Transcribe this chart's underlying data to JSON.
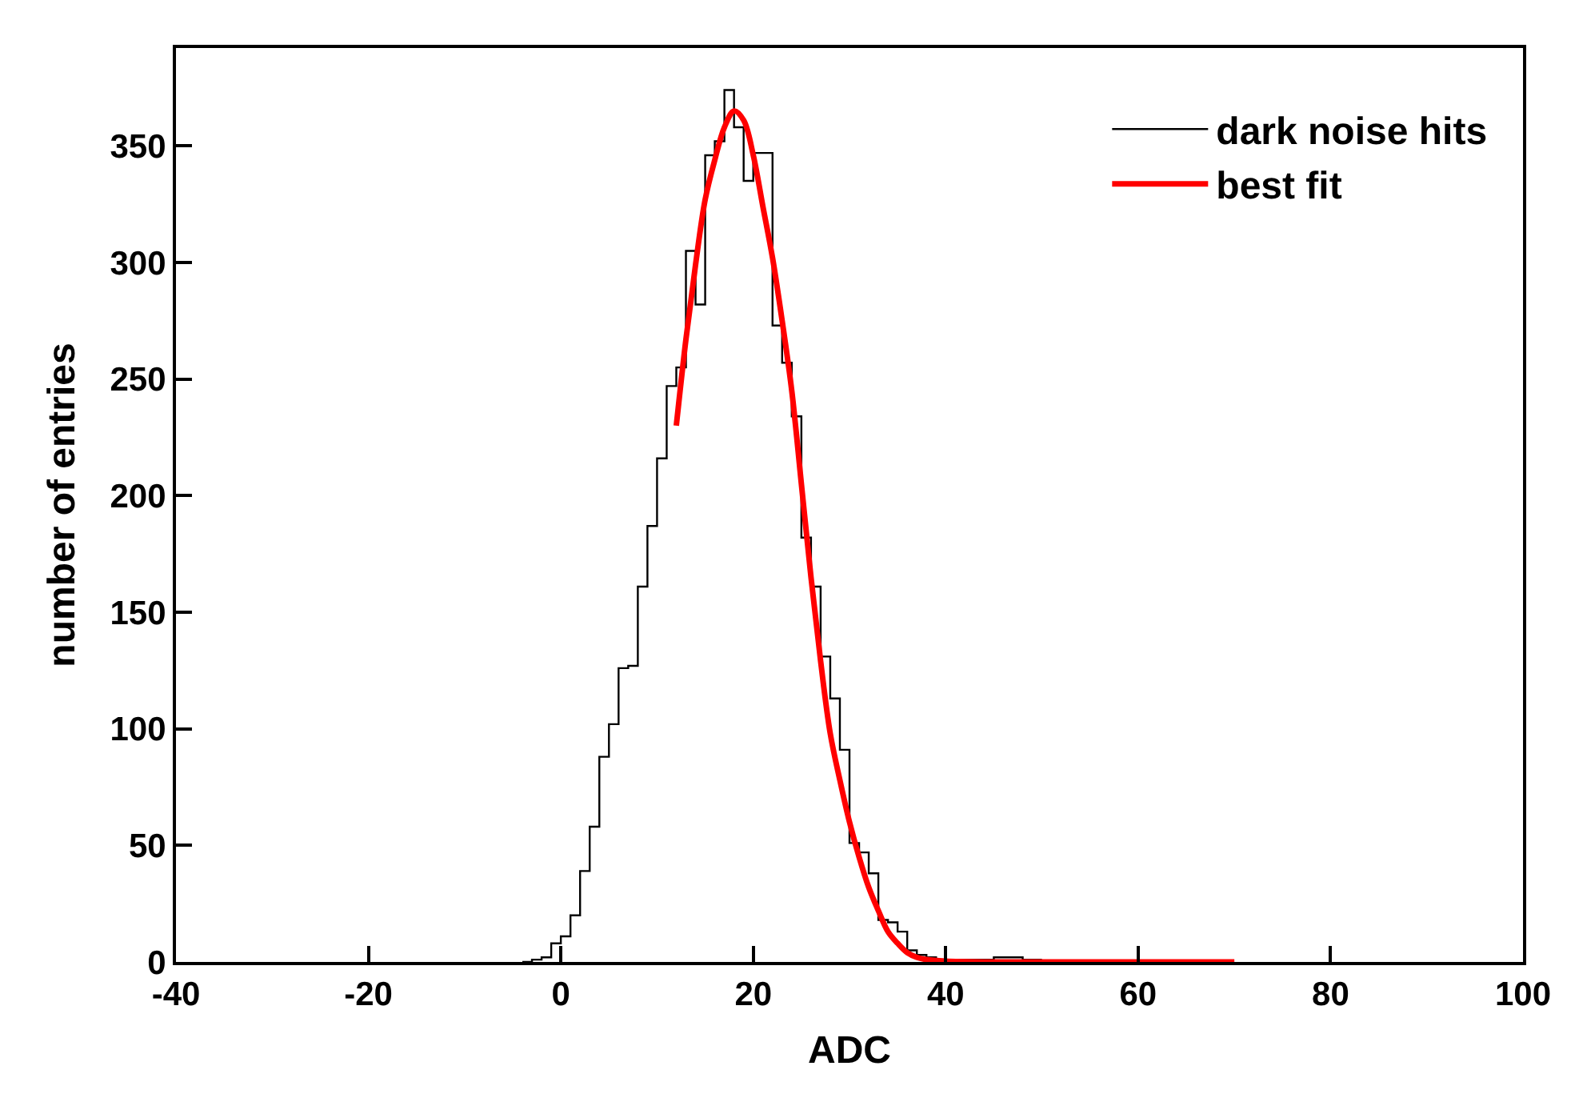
{
  "chart_data": {
    "type": "histogram",
    "xlabel": "ADC",
    "ylabel": "number of entries",
    "xlim": [
      -40,
      100
    ],
    "xticks": [
      -40,
      -20,
      0,
      20,
      40,
      60,
      80,
      100
    ],
    "ylim": [
      0,
      392
    ],
    "yticks": [
      0,
      50,
      100,
      150,
      200,
      250,
      300,
      350
    ],
    "legend": "top right",
    "series": [
      {
        "name": "dark noise hits",
        "color": "#000000",
        "bins": [
          -4,
          -3,
          -2,
          -1,
          0,
          1,
          2,
          3,
          4,
          5,
          6,
          7,
          8,
          9,
          10,
          11,
          12,
          13,
          14,
          15,
          16,
          17,
          18,
          19,
          20,
          21,
          22,
          23,
          24,
          25,
          26,
          27,
          28,
          29,
          30,
          31,
          32,
          33,
          34,
          35,
          36,
          37,
          38,
          39,
          40,
          41,
          42,
          43,
          44,
          45,
          46,
          47,
          48,
          49,
          50
        ],
        "values": [
          0,
          1,
          2,
          8,
          11,
          20,
          39,
          58,
          88,
          102,
          126,
          127,
          161,
          187,
          216,
          247,
          255,
          305,
          282,
          346,
          352,
          374,
          358,
          335,
          347,
          347,
          273,
          257,
          234,
          182,
          161,
          131,
          113,
          91,
          51,
          47,
          38,
          18,
          17,
          13,
          5,
          3,
          2,
          1,
          1,
          1,
          1,
          1,
          1,
          2,
          2,
          2,
          1,
          1
        ]
      },
      {
        "name": "best fit",
        "type": "line",
        "color": "#ff0000",
        "x": [
          12,
          13,
          14,
          15,
          16,
          17,
          18,
          19,
          20,
          21,
          22,
          23,
          24,
          25,
          26,
          27,
          28,
          29,
          30,
          31,
          32,
          33,
          34,
          35,
          36,
          37,
          38,
          40,
          45,
          50,
          60,
          70
        ],
        "values": [
          230,
          267,
          299,
          327,
          344,
          358,
          365,
          361,
          346,
          324,
          302,
          275,
          245,
          205,
          165,
          129,
          98,
          78,
          60,
          45,
          32,
          22,
          13,
          8,
          4,
          2,
          1,
          0.3,
          0,
          0,
          0,
          0
        ]
      }
    ]
  }
}
